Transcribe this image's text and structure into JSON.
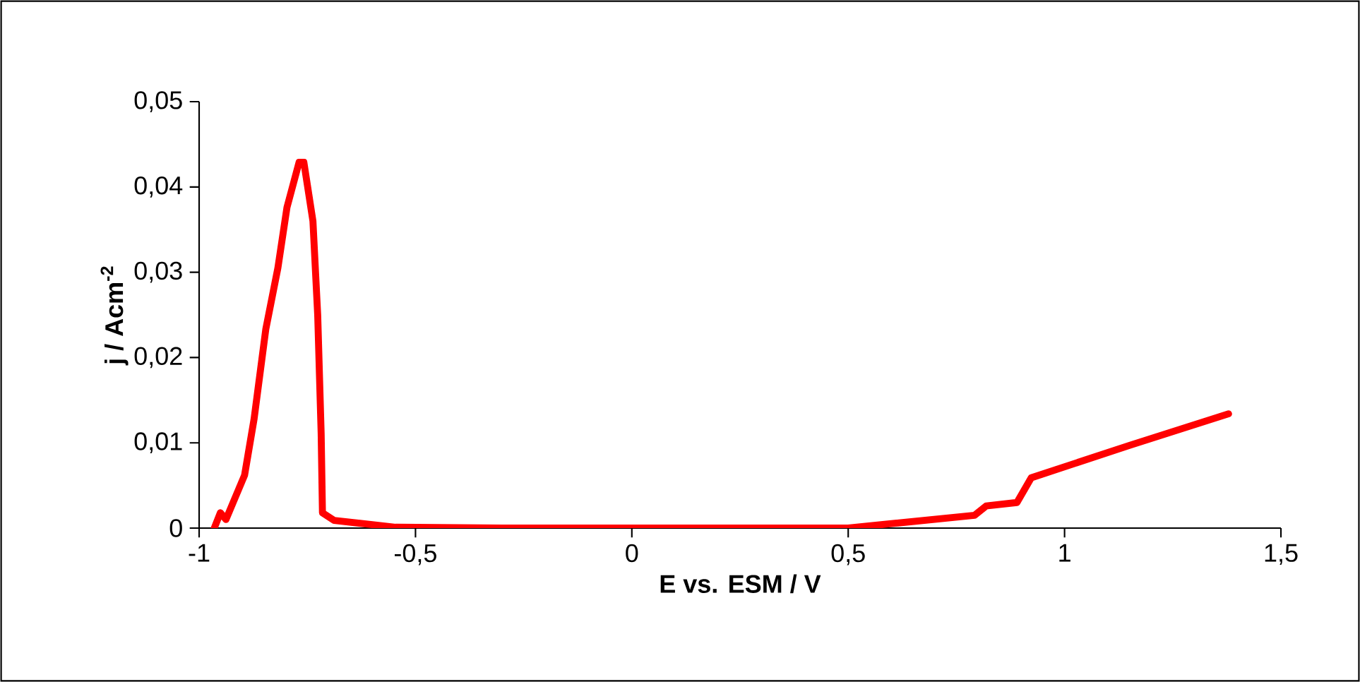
{
  "chart_data": {
    "type": "line",
    "xlabel": "E vs. ESM / V",
    "ylabel": "j / Acm$^{-2}$",
    "xlim": [
      -1,
      1.5
    ],
    "xticks": [
      {
        "value": -1,
        "label": "-1"
      },
      {
        "value": -0.5,
        "label": "-0,5"
      },
      {
        "value": 0,
        "label": "0"
      },
      {
        "value": 0.5,
        "label": "0,5"
      },
      {
        "value": 1,
        "label": "1"
      },
      {
        "value": 1.5,
        "label": "1,5"
      }
    ],
    "ylim": [
      0,
      0.05
    ],
    "yticks": [
      {
        "value": 0,
        "label": "0"
      },
      {
        "value": 0.01,
        "label": "0,01"
      },
      {
        "value": 0.02,
        "label": "0,02"
      },
      {
        "value": 0.03,
        "label": "0,03"
      },
      {
        "value": 0.04,
        "label": "0,04"
      },
      {
        "value": 0.05,
        "label": "0,05"
      }
    ],
    "marker": "none",
    "line_style": "solid",
    "series": [
      {
        "color": "#ff0000",
        "x": [
          -0.965,
          -0.951,
          -0.938,
          -0.895,
          -0.873,
          -0.846,
          -0.818,
          -0.797,
          -0.769,
          -0.758,
          -0.737,
          -0.726,
          -0.718,
          -0.715,
          -0.688,
          -0.546,
          -0.3,
          0,
          0.3,
          0.5,
          0.596,
          0.792,
          0.819,
          0.89,
          0.923,
          1.15,
          1.379
        ],
        "values": [
          0,
          0.0018,
          0.001,
          0.0062,
          0.0128,
          0.0233,
          0.0305,
          0.0376,
          0.0429,
          0.0429,
          0.036,
          0.025,
          0.0111,
          0.0018,
          0.0009,
          0.0001,
          0,
          0,
          0,
          0,
          0.0005,
          0.0015,
          0.0026,
          0.003,
          0.0059,
          0.0097,
          0.0134
        ]
      }
    ]
  }
}
